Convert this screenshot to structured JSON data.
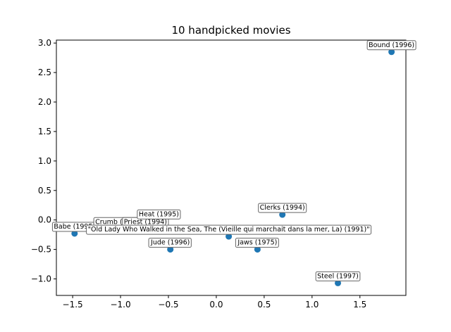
{
  "chart_data": {
    "type": "scatter",
    "title": "10 handpicked movies",
    "xlabel": "",
    "ylabel": "",
    "xlim": [
      -1.67,
      1.98
    ],
    "ylim": [
      -1.28,
      3.05
    ],
    "xticks": [
      -1.5,
      -1.0,
      -0.5,
      0.0,
      0.5,
      1.0,
      1.5
    ],
    "xtick_labels": [
      "−1.5",
      "−1.0",
      "−0.5",
      "0.0",
      "0.5",
      "1.0",
      "1.5"
    ],
    "yticks": [
      -1.0,
      -0.5,
      0.0,
      0.5,
      1.0,
      1.5,
      2.0,
      2.5,
      3.0
    ],
    "ytick_labels": [
      "−1.0",
      "−0.5",
      "0.0",
      "0.5",
      "1.0",
      "1.5",
      "2.0",
      "2.5",
      "3.0"
    ],
    "grid": false,
    "marker_color": "#1f77b4",
    "points": [
      {
        "label": "Babe (1995)",
        "x": -1.48,
        "y": -0.23
      },
      {
        "label": "Crumb (1994)",
        "x": -1.02,
        "y": -0.15
      },
      {
        "label": "Priest (1994)",
        "x": -0.74,
        "y": -0.15
      },
      {
        "label": "Heat (1995)",
        "x": -0.6,
        "y": -0.02
      },
      {
        "label": "Jude (1996)",
        "x": -0.48,
        "y": -0.5
      },
      {
        "label": "\"Old Lady Who Walked in the Sea, The (Vieille qui marchait dans la mer, La) (1991)\"",
        "x": 0.13,
        "y": -0.28
      },
      {
        "label": "Jaws (1975)",
        "x": 0.43,
        "y": -0.5
      },
      {
        "label": "Clerks (1994)",
        "x": 0.69,
        "y": 0.09
      },
      {
        "label": "Steel (1997)",
        "x": 1.27,
        "y": -1.07
      },
      {
        "label": "Bound (1996)",
        "x": 1.83,
        "y": 2.85
      }
    ]
  }
}
